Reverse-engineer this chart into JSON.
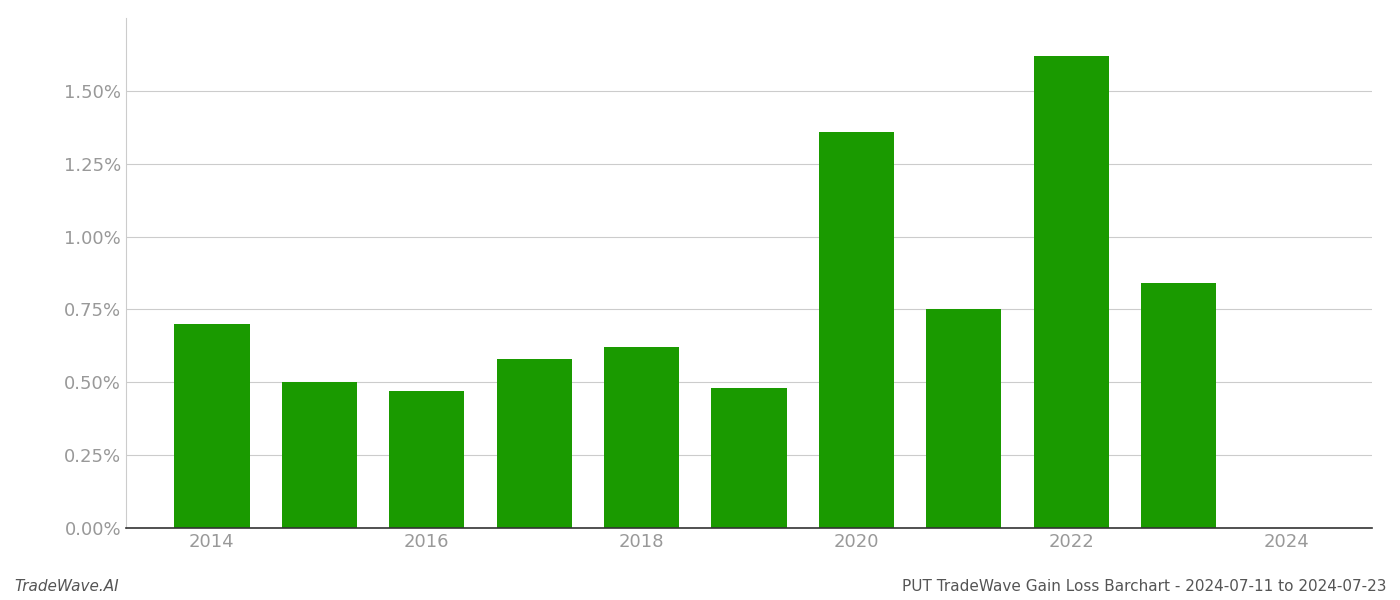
{
  "years": [
    2014,
    2015,
    2016,
    2017,
    2018,
    2019,
    2020,
    2021,
    2022,
    2023
  ],
  "values": [
    0.007,
    0.005,
    0.0047,
    0.0058,
    0.0062,
    0.0048,
    0.0136,
    0.0075,
    0.0162,
    0.0084
  ],
  "bar_color": "#1a9a00",
  "background_color": "#ffffff",
  "ylim": [
    0,
    0.0175
  ],
  "yticks": [
    0.0,
    0.0025,
    0.005,
    0.0075,
    0.01,
    0.0125,
    0.015
  ],
  "xticks": [
    2014,
    2016,
    2018,
    2020,
    2022,
    2024
  ],
  "xlim": [
    2013.2,
    2024.8
  ],
  "grid_color": "#cccccc",
  "footer_left": "TradeWave.AI",
  "footer_right": "PUT TradeWave Gain Loss Barchart - 2024-07-11 to 2024-07-23",
  "footer_fontsize": 11,
  "tick_color": "#999999",
  "spine_color": "#aaaaaa",
  "bar_width": 0.7
}
